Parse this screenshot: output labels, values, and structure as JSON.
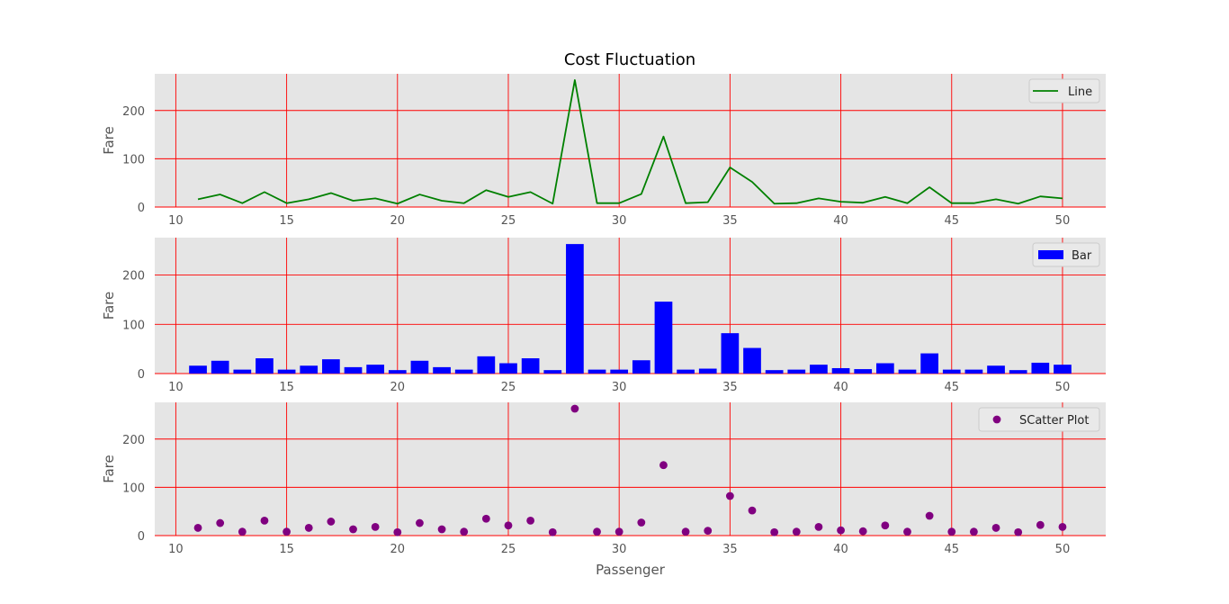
{
  "chart_data": [
    {
      "type": "line",
      "title": "Cost Fluctuation",
      "xlabel": "",
      "ylabel": "Fare",
      "xlim": [
        9.05,
        51.95
      ],
      "ylim": [
        0,
        276
      ],
      "xticks": [
        "10",
        "15",
        "20",
        "25",
        "30",
        "35",
        "40",
        "45",
        "50"
      ],
      "yticks": [
        "0",
        "100",
        "200"
      ],
      "grid": true,
      "legend": "top-right",
      "series": [
        {
          "name": "Line",
          "color": "#008000",
          "x": [
            11,
            12,
            13,
            14,
            15,
            16,
            17,
            18,
            19,
            20,
            21,
            22,
            23,
            24,
            25,
            26,
            27,
            28,
            29,
            30,
            31,
            32,
            33,
            34,
            35,
            36,
            37,
            38,
            39,
            40,
            41,
            42,
            43,
            44,
            45,
            46,
            47,
            48,
            49,
            50
          ],
          "y": [
            16,
            26,
            8,
            31,
            8,
            16,
            29,
            13,
            18,
            7,
            26,
            13,
            8,
            35,
            21,
            31,
            7,
            263,
            8,
            8,
            27,
            146,
            8,
            10,
            82,
            52,
            7,
            8,
            18,
            11,
            9,
            21,
            8,
            41,
            8,
            8,
            16,
            7,
            22,
            18
          ]
        }
      ]
    },
    {
      "type": "bar",
      "title": "",
      "xlabel": "",
      "ylabel": "Fare",
      "xlim": [
        9.05,
        51.95
      ],
      "ylim": [
        0,
        276
      ],
      "xticks": [
        "10",
        "15",
        "20",
        "25",
        "30",
        "35",
        "40",
        "45",
        "50"
      ],
      "yticks": [
        "0",
        "100",
        "200"
      ],
      "grid": true,
      "legend": "top-right",
      "series": [
        {
          "name": "Bar",
          "color": "#0000ff",
          "x": [
            11,
            12,
            13,
            14,
            15,
            16,
            17,
            18,
            19,
            20,
            21,
            22,
            23,
            24,
            25,
            26,
            27,
            28,
            29,
            30,
            31,
            32,
            33,
            34,
            35,
            36,
            37,
            38,
            39,
            40,
            41,
            42,
            43,
            44,
            45,
            46,
            47,
            48,
            49,
            50
          ],
          "y": [
            16,
            26,
            8,
            31,
            8,
            16,
            29,
            13,
            18,
            7,
            26,
            13,
            8,
            35,
            21,
            31,
            7,
            263,
            8,
            8,
            27,
            146,
            8,
            10,
            82,
            52,
            7,
            8,
            18,
            11,
            9,
            21,
            8,
            41,
            8,
            8,
            16,
            7,
            22,
            18
          ]
        }
      ]
    },
    {
      "type": "scatter",
      "title": "",
      "xlabel": "Passenger",
      "ylabel": "Fare",
      "xlim": [
        9.05,
        51.95
      ],
      "ylim": [
        0,
        276
      ],
      "xticks": [
        "10",
        "15",
        "20",
        "25",
        "30",
        "35",
        "40",
        "45",
        "50"
      ],
      "yticks": [
        "0",
        "100",
        "200"
      ],
      "grid": true,
      "legend": "top-right",
      "series": [
        {
          "name": "SCatter Plot",
          "color": "#800080",
          "x": [
            11,
            12,
            13,
            14,
            15,
            16,
            17,
            18,
            19,
            20,
            21,
            22,
            23,
            24,
            25,
            26,
            27,
            28,
            29,
            30,
            31,
            32,
            33,
            34,
            35,
            36,
            37,
            38,
            39,
            40,
            41,
            42,
            43,
            44,
            45,
            46,
            47,
            48,
            49,
            50
          ],
          "y": [
            16,
            26,
            8,
            31,
            8,
            16,
            29,
            13,
            18,
            7,
            26,
            13,
            8,
            35,
            21,
            31,
            7,
            263,
            8,
            8,
            27,
            146,
            8,
            10,
            82,
            52,
            7,
            8,
            18,
            11,
            9,
            21,
            8,
            41,
            8,
            8,
            16,
            7,
            22,
            18
          ]
        }
      ]
    }
  ]
}
